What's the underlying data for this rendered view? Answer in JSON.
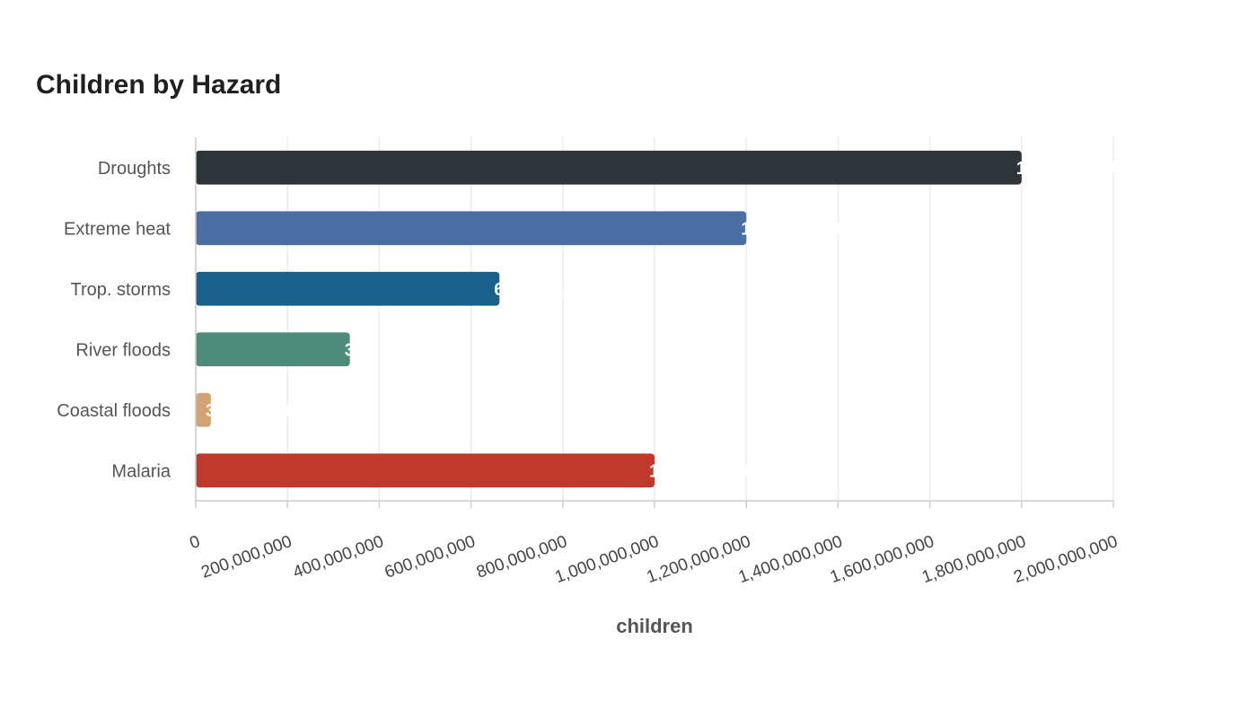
{
  "chart_data": {
    "type": "bar",
    "orientation": "horizontal",
    "title": "Children by Hazard",
    "xlabel": "children",
    "ylabel": "",
    "categories": [
      "Droughts",
      "Extreme heat",
      "Trop. storms",
      "River floods",
      "Coastal floods",
      "Malaria"
    ],
    "values": [
      1800000000,
      1200000000,
      662000000,
      336000000,
      33000000,
      1000000000
    ],
    "colors": [
      "#2e3539",
      "#4a6fa5",
      "#19618a",
      "#4d8c7a",
      "#d4a373",
      "#c0392b"
    ],
    "xlim": [
      0,
      2000000000
    ],
    "xticks": [
      0,
      200000000,
      400000000,
      600000000,
      800000000,
      1000000000,
      1200000000,
      1400000000,
      1600000000,
      1800000000,
      2000000000
    ],
    "xtick_labels": [
      "0",
      "200,000,000",
      "400,000,000",
      "600,000,000",
      "800,000,000",
      "1,000,000,000",
      "1,200,000,000",
      "1,400,000,000",
      "1,600,000,000",
      "1,800,000,000",
      "2,000,000,000"
    ],
    "grid": true,
    "legend": "none"
  }
}
